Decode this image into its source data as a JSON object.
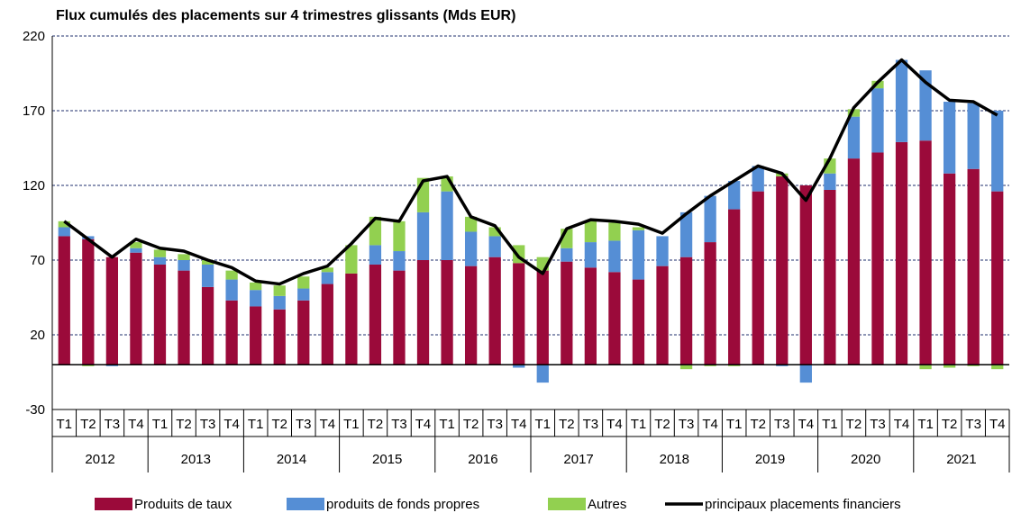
{
  "chart_data": {
    "type": "bar",
    "stacked": true,
    "title": "Flux cumulés des placements sur 4 trimestres glissants (Mds EUR)",
    "categories": [
      "T1",
      "T2",
      "T3",
      "T4",
      "T1",
      "T2",
      "T3",
      "T4",
      "T1",
      "T2",
      "T3",
      "T4",
      "T1",
      "T2",
      "T3",
      "T4",
      "T1",
      "T2",
      "T3",
      "T4",
      "T1",
      "T2",
      "T3",
      "T4",
      "T1",
      "T2",
      "T3",
      "T4",
      "T1",
      "T2",
      "T3",
      "T4",
      "T1",
      "T2",
      "T3",
      "T4",
      "T1",
      "T2",
      "T3",
      "T4"
    ],
    "groups": [
      "2012",
      "2013",
      "2014",
      "2015",
      "2016",
      "2017",
      "2018",
      "2019",
      "2020",
      "2021"
    ],
    "series": [
      {
        "name": "Produits de taux",
        "color": "#9b0a3a",
        "values": [
          86,
          84,
          72,
          75,
          67,
          63,
          52,
          43,
          39,
          37,
          43,
          54,
          61,
          67,
          63,
          70,
          70,
          66,
          72,
          68,
          63,
          69,
          65,
          62,
          57,
          66,
          72,
          82,
          104,
          116,
          126,
          120,
          117,
          138,
          142,
          149,
          150,
          128,
          131,
          116
        ]
      },
      {
        "name": "produits de fonds propres",
        "color": "#558ed5",
        "values": [
          6,
          2,
          -1,
          3,
          5,
          7,
          15,
          14,
          11,
          9,
          8,
          8,
          0,
          13,
          13,
          32,
          46,
          23,
          14,
          -2,
          -12,
          9,
          17,
          21,
          33,
          20,
          30,
          31,
          19,
          17,
          -1,
          -12,
          11,
          28,
          43,
          55,
          47,
          48,
          44,
          54
        ]
      },
      {
        "name": "Autres",
        "color": "#92d050",
        "values": [
          4,
          -1,
          0,
          4,
          5,
          4,
          3,
          6,
          5,
          7,
          8,
          3,
          19,
          19,
          20,
          23,
          10,
          10,
          6,
          12,
          9,
          13,
          14,
          12,
          2,
          0,
          -3,
          -1,
          -1,
          0,
          2,
          0,
          10,
          5,
          5,
          0,
          -3,
          -2,
          -1,
          -3
        ]
      },
      {
        "name": "principaux placements financiers",
        "color": "#000000",
        "type": "line",
        "values": [
          96,
          84,
          72,
          84,
          78,
          76,
          70,
          65,
          56,
          54,
          61,
          66,
          81,
          98,
          96,
          123,
          126,
          99,
          93,
          72,
          61,
          91,
          97,
          96,
          94,
          88,
          101,
          113,
          123,
          133,
          128,
          110,
          138,
          172,
          189,
          204,
          189,
          177,
          176,
          167
        ]
      }
    ],
    "ylim": [
      -30,
      220
    ],
    "yticks": [
      -30,
      20,
      70,
      120,
      170,
      220
    ],
    "grid": true,
    "legend": "bottom"
  }
}
